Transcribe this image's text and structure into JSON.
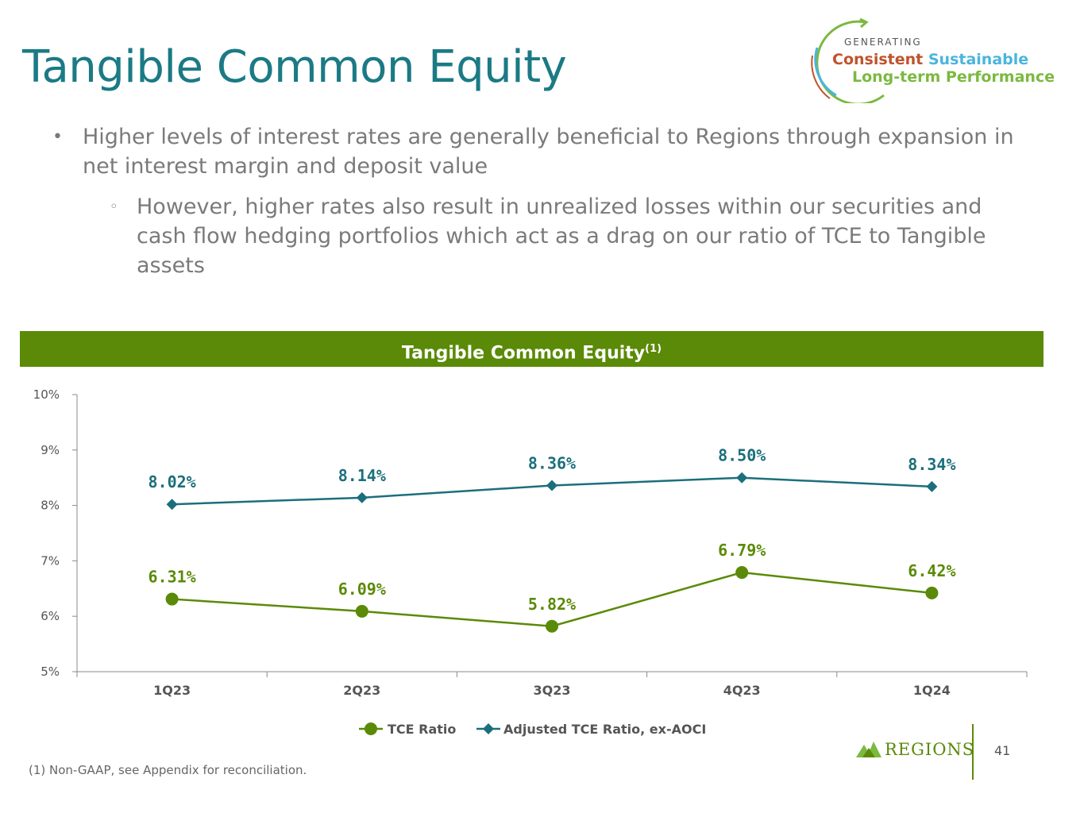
{
  "slide": {
    "title": "Tangible Common Equity",
    "page_number": "41",
    "footnote": "(1) Non-GAAP, see Appendix for reconciliation."
  },
  "badge": {
    "generating": "GENERATING",
    "consistent": "Consistent",
    "sustainable": "Sustainable",
    "long_term": "Long-term Performance"
  },
  "bullets": {
    "main": "Higher levels of interest rates are generally beneficial to Regions through expansion in net interest margin and deposit value",
    "sub": "However, higher rates also result in unrealized losses within our securities and cash flow hedging portfolios which act as a drag on our ratio of TCE to Tangible assets"
  },
  "logo": {
    "text": "REGIONS"
  },
  "colors": {
    "title": "#1b7a85",
    "green": "#5a8a07",
    "teal": "#1b6f7c",
    "badge_orange": "#c0532c",
    "badge_blue": "#4ab5dd",
    "badge_green": "#7bb93f"
  },
  "chart_data": {
    "type": "line",
    "title": "Tangible Common Equity",
    "title_superscript": "(1)",
    "categories": [
      "1Q23",
      "2Q23",
      "3Q23",
      "4Q23",
      "1Q24"
    ],
    "ylim": [
      5,
      10
    ],
    "yticks": [
      "5%",
      "6%",
      "7%",
      "8%",
      "9%",
      "10%"
    ],
    "xlabel": "",
    "ylabel": "",
    "series": [
      {
        "name": "TCE Ratio",
        "marker": "circle",
        "values": [
          6.31,
          6.09,
          5.82,
          6.79,
          6.42
        ],
        "labels": [
          "6.31%",
          "6.09%",
          "5.82%",
          "6.79%",
          "6.42%"
        ]
      },
      {
        "name": "Adjusted TCE Ratio, ex-AOCI",
        "marker": "diamond",
        "values": [
          8.02,
          8.14,
          8.36,
          8.5,
          8.34
        ],
        "labels": [
          "8.02%",
          "8.14%",
          "8.36%",
          "8.50%",
          "8.34%"
        ]
      }
    ],
    "legend_position": "bottom-center"
  }
}
